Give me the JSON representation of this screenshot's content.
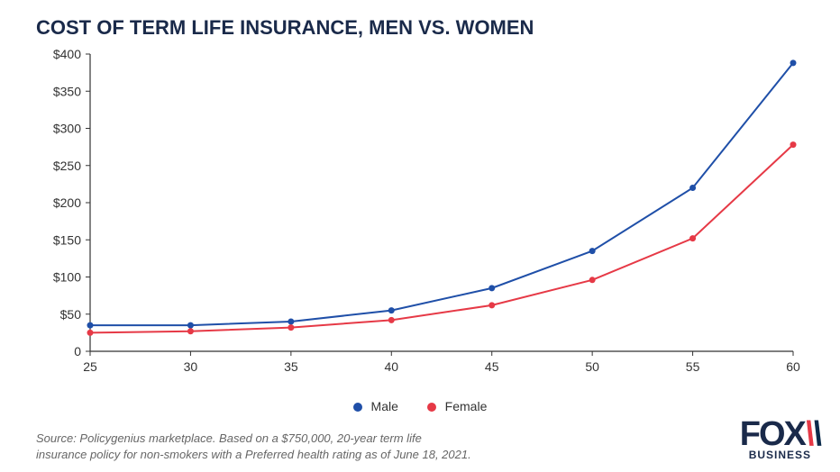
{
  "title": "COST OF TERM LIFE INSURANCE, MEN VS. WOMEN",
  "chart": {
    "type": "line",
    "x_categories": [
      "25",
      "30",
      "35",
      "40",
      "45",
      "50",
      "55",
      "60"
    ],
    "series": [
      {
        "name": "Male",
        "color": "#1f4fa8",
        "values": [
          35,
          35,
          40,
          55,
          85,
          135,
          220,
          388
        ]
      },
      {
        "name": "Female",
        "color": "#e63946",
        "values": [
          25,
          27,
          32,
          42,
          62,
          96,
          152,
          278
        ]
      }
    ],
    "y_ticks": [
      0,
      50,
      100,
      150,
      200,
      250,
      300,
      350,
      400
    ],
    "y_tick_labels": [
      "0",
      "$50",
      "$100",
      "$150",
      "$200",
      "$250",
      "$300",
      "$350",
      "$400"
    ],
    "ylim": [
      0,
      400
    ],
    "marker_radius": 3.5,
    "line_width": 2,
    "axis_color": "#333333",
    "tick_label_color": "#333333",
    "tick_fontsize": 14,
    "background_color": "#ffffff"
  },
  "legend": {
    "male_label": "Male",
    "female_label": "Female",
    "male_color": "#1f4fa8",
    "female_color": "#e63946"
  },
  "source_text": "Source: Policygenius marketplace. Based on a $750,000, 20-year term life\ninsurance policy for non-smokers with a Preferred health rating as of June 18, 2021.",
  "logo": {
    "fox": "FOX",
    "business": "BUSINESS"
  }
}
